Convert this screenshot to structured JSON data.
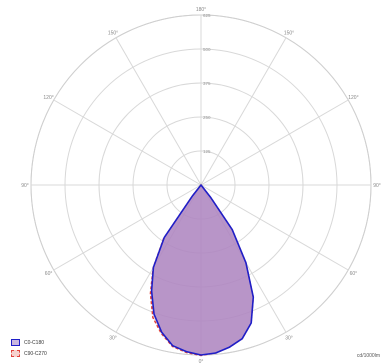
{
  "chart_data": {
    "type": "polar",
    "angles": [
      180,
      150,
      120,
      90,
      60,
      30,
      0,
      30,
      60,
      90,
      120,
      150
    ],
    "angle_labels": [
      "180°",
      "150°",
      "120°",
      "90°",
      "60°",
      "30°",
      "0°",
      "30°",
      "60°",
      "90°",
      "120°",
      "150°"
    ],
    "radial_ticks": [
      125,
      250,
      375,
      500,
      625
    ],
    "radial_labels": [
      "125",
      "250",
      "375",
      "500",
      "625"
    ],
    "rmax": 625,
    "unit_label": "cd/1000lm",
    "series": [
      {
        "name": "C0-C180",
        "color": "#1f1fc8",
        "fill": "#a078c0",
        "points": [
          [
            -38,
            50
          ],
          [
            -35,
            235
          ],
          [
            -30,
            350
          ],
          [
            -25,
            430
          ],
          [
            -20,
            505
          ],
          [
            -15,
            560
          ],
          [
            -10,
            600
          ],
          [
            -5,
            615
          ],
          [
            0,
            625
          ],
          [
            5,
            620
          ],
          [
            10,
            605
          ],
          [
            15,
            585
          ],
          [
            20,
            540
          ],
          [
            25,
            455
          ],
          [
            30,
            330
          ],
          [
            35,
            200
          ],
          [
            38,
            60
          ]
        ]
      },
      {
        "name": "C90-C270",
        "color": "#e0413a",
        "points": [
          [
            -38,
            50
          ],
          [
            -35,
            240
          ],
          [
            -30,
            352
          ],
          [
            -25,
            440
          ],
          [
            -20,
            518
          ],
          [
            -15,
            565
          ],
          [
            -10,
            603
          ],
          [
            -5,
            618
          ],
          [
            0,
            627
          ],
          [
            5,
            620
          ],
          [
            10,
            605
          ],
          [
            15,
            585
          ],
          [
            20,
            540
          ],
          [
            25,
            455
          ],
          [
            30,
            330
          ],
          [
            35,
            200
          ],
          [
            38,
            60
          ]
        ]
      }
    ],
    "legend": {
      "position": "bottom-left",
      "entries": [
        "C0-C180",
        "C90-C270"
      ]
    }
  }
}
